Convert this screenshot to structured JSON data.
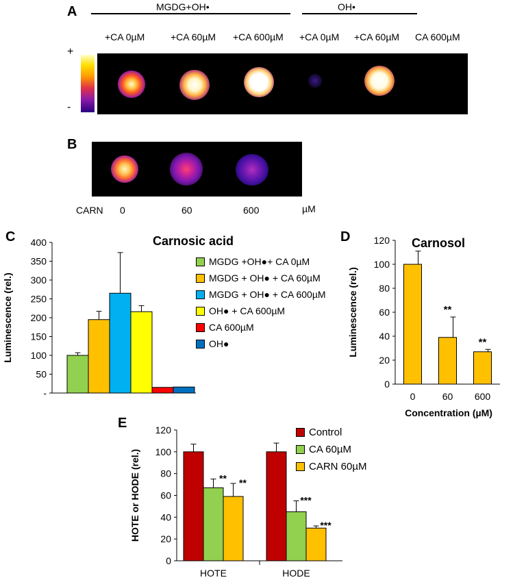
{
  "panels": {
    "a": "A",
    "b": "B",
    "c": "C",
    "d": "D",
    "e": "E"
  },
  "panel_a": {
    "group1": "MGDG+OH•",
    "group2": "OH•",
    "labels": [
      "+CA 0µM",
      "+CA 60µM",
      "+CA 600µM",
      "+CA 0µM",
      "+CA 60µM",
      "CA 600µM"
    ],
    "scale_plus": "+",
    "scale_minus": "-"
  },
  "panel_b": {
    "row_label": "CARN",
    "labels": [
      "0",
      "60",
      "600"
    ],
    "unit": "µM"
  },
  "colors": {
    "green": "#92d050",
    "orange": "#ffc000",
    "lightblue": "#00b0f0",
    "yellow": "#ffff00",
    "red": "#ff0000",
    "blue": "#0070c0",
    "darkred": "#c00000"
  },
  "chart_data": [
    {
      "id": "C",
      "type": "bar",
      "title": "Carnosic acid",
      "ylabel": "Luminescence (rel.)",
      "ylim": [
        0,
        400
      ],
      "yticks": [
        0,
        50,
        100,
        150,
        200,
        250,
        300,
        350,
        400
      ],
      "ytick_labels": [
        "-",
        "50",
        "100",
        "150",
        "200",
        "250",
        "300",
        "350",
        "400"
      ],
      "series": [
        {
          "name": "MGDG +OH●+ CA 0µM",
          "value": 100,
          "error": 7,
          "color": "#92d050"
        },
        {
          "name": "MGDG + OH● + CA 60µM",
          "value": 195,
          "error": 22,
          "color": "#ffc000"
        },
        {
          "name": "MGDG + OH● + CA 600µM",
          "value": 265,
          "error": 108,
          "color": "#00b0f0"
        },
        {
          "name": "OH● + CA 600µM",
          "value": 216,
          "error": 16,
          "color": "#ffff00"
        },
        {
          "name": "CA 600µM",
          "value": 15,
          "error": 0,
          "color": "#ff0000"
        },
        {
          "name": "OH●",
          "value": 16,
          "error": 0,
          "color": "#0070c0"
        }
      ],
      "legend": "right"
    },
    {
      "id": "D",
      "type": "bar",
      "title": "Carnosol",
      "xlabel": "Concentration (µM)",
      "ylabel": "Luminescence (rel.)",
      "ylim": [
        0,
        120
      ],
      "yticks": [
        0,
        20,
        40,
        60,
        80,
        100,
        120
      ],
      "categories": [
        "0",
        "60",
        "600"
      ],
      "values": [
        100,
        39,
        27
      ],
      "errors": [
        11,
        17,
        2
      ],
      "significance": [
        "",
        "**",
        "**"
      ],
      "color": "#ffc000"
    },
    {
      "id": "E",
      "type": "bar",
      "ylabel": "HOTE or HODE (rel.)",
      "ylim": [
        0,
        120
      ],
      "yticks": [
        0,
        20,
        40,
        60,
        80,
        100,
        120
      ],
      "categories": [
        "HOTE",
        "HODE"
      ],
      "series": [
        {
          "name": "Control",
          "values": [
            100,
            100
          ],
          "errors": [
            7,
            8
          ],
          "significance": [
            "",
            ""
          ],
          "color": "#c00000"
        },
        {
          "name": "CA 60µM",
          "values": [
            67,
            45
          ],
          "errors": [
            8,
            10
          ],
          "significance": [
            "**",
            "***"
          ],
          "color": "#92d050"
        },
        {
          "name": "CARN 60µM",
          "values": [
            59,
            30
          ],
          "errors": [
            12,
            2
          ],
          "significance": [
            "**",
            "***"
          ],
          "color": "#ffc000"
        }
      ],
      "legend": "top-right"
    }
  ]
}
